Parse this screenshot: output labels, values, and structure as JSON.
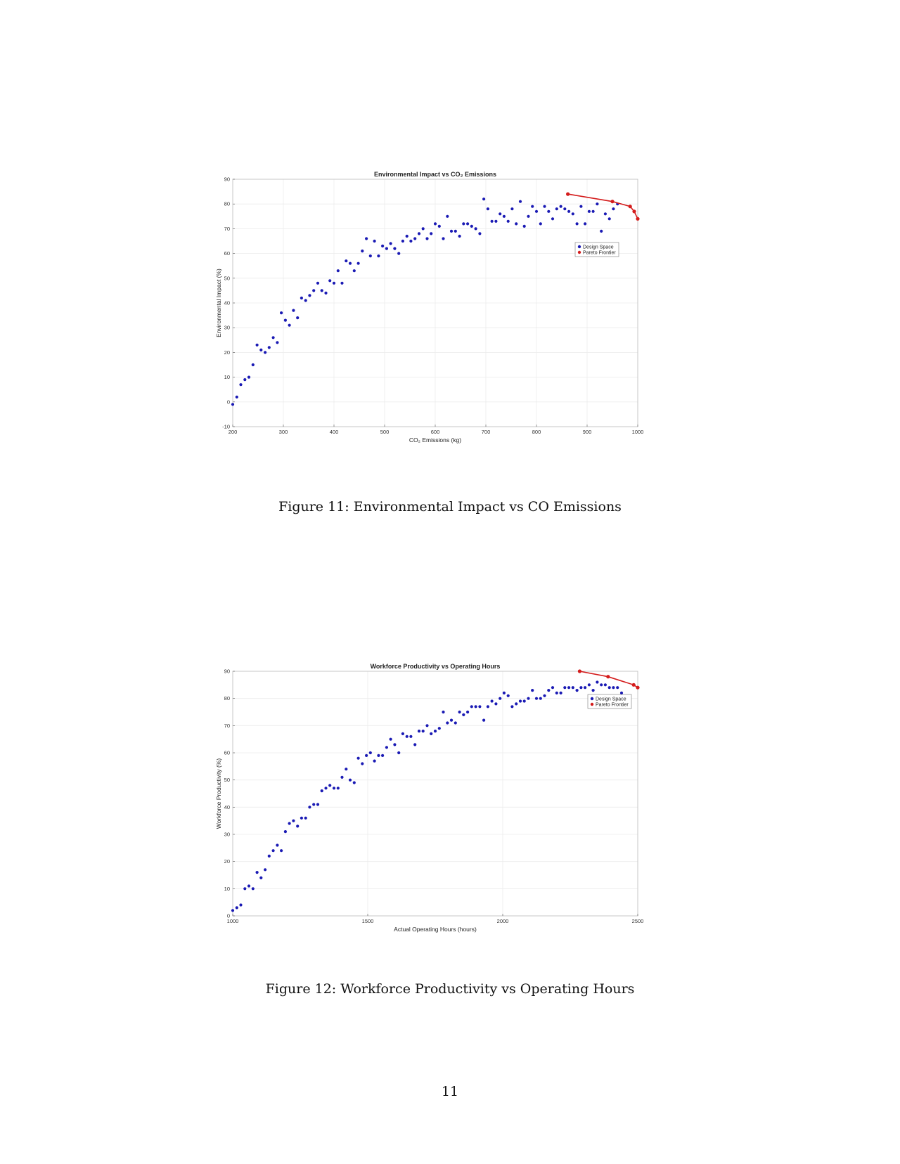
{
  "figures": [
    {
      "caption": "Figure 11: Environmental Impact vs CO Emissions",
      "chart_data": {
        "type": "scatter",
        "title": "Environmental Impact vs CO₂ Emissions",
        "xlabel": "CO₂ Emissions (kg)",
        "ylabel": "Environmental Impact (%)",
        "xlim": [
          200,
          1000
        ],
        "ylim": [
          -10,
          90
        ],
        "xticks": [
          200,
          300,
          400,
          500,
          600,
          700,
          800,
          900,
          1000
        ],
        "yticks": [
          -10,
          0,
          10,
          20,
          30,
          40,
          50,
          60,
          70,
          80,
          90
        ],
        "grid": true,
        "legend": "right, upper-middle",
        "series": [
          {
            "name": "Design Space",
            "color": "#1a1ab4",
            "marker": "point",
            "points": [
              [
                200,
                -1
              ],
              [
                208,
                2
              ],
              [
                216,
                7
              ],
              [
                224,
                9
              ],
              [
                232,
                10
              ],
              [
                240,
                15
              ],
              [
                248,
                23
              ],
              [
                256,
                21
              ],
              [
                264,
                20
              ],
              [
                272,
                22
              ],
              [
                280,
                26
              ],
              [
                288,
                24
              ],
              [
                296,
                36
              ],
              [
                304,
                33
              ],
              [
                312,
                31
              ],
              [
                320,
                37
              ],
              [
                328,
                34
              ],
              [
                336,
                42
              ],
              [
                344,
                41
              ],
              [
                352,
                43
              ],
              [
                360,
                45
              ],
              [
                368,
                48
              ],
              [
                376,
                45
              ],
              [
                384,
                44
              ],
              [
                392,
                49
              ],
              [
                400,
                48
              ],
              [
                408,
                53
              ],
              [
                416,
                48
              ],
              [
                424,
                57
              ],
              [
                432,
                56
              ],
              [
                440,
                53
              ],
              [
                448,
                56
              ],
              [
                456,
                61
              ],
              [
                464,
                66
              ],
              [
                472,
                59
              ],
              [
                480,
                65
              ],
              [
                488,
                59
              ],
              [
                496,
                63
              ],
              [
                504,
                62
              ],
              [
                512,
                64
              ],
              [
                520,
                62
              ],
              [
                528,
                60
              ],
              [
                536,
                65
              ],
              [
                544,
                67
              ],
              [
                552,
                65
              ],
              [
                560,
                66
              ],
              [
                568,
                68
              ],
              [
                576,
                70
              ],
              [
                584,
                66
              ],
              [
                592,
                68
              ],
              [
                600,
                72
              ],
              [
                608,
                71
              ],
              [
                616,
                66
              ],
              [
                624,
                75
              ],
              [
                632,
                69
              ],
              [
                640,
                69
              ],
              [
                648,
                67
              ],
              [
                656,
                72
              ],
              [
                664,
                72
              ],
              [
                672,
                71
              ],
              [
                680,
                70
              ],
              [
                688,
                68
              ],
              [
                696,
                82
              ],
              [
                704,
                78
              ],
              [
                712,
                73
              ],
              [
                720,
                73
              ],
              [
                728,
                76
              ],
              [
                736,
                75
              ],
              [
                744,
                73
              ],
              [
                752,
                78
              ],
              [
                760,
                72
              ],
              [
                768,
                81
              ],
              [
                776,
                71
              ],
              [
                784,
                75
              ],
              [
                792,
                79
              ],
              [
                800,
                77
              ],
              [
                808,
                72
              ],
              [
                816,
                79
              ],
              [
                824,
                77
              ],
              [
                832,
                74
              ],
              [
                840,
                78
              ],
              [
                848,
                79
              ],
              [
                856,
                78
              ],
              [
                864,
                77
              ],
              [
                872,
                76
              ],
              [
                880,
                72
              ],
              [
                888,
                79
              ],
              [
                896,
                72
              ],
              [
                904,
                77
              ],
              [
                912,
                77
              ],
              [
                920,
                80
              ],
              [
                928,
                69
              ],
              [
                936,
                76
              ],
              [
                944,
                74
              ],
              [
                952,
                78
              ],
              [
                960,
                80
              ]
            ]
          },
          {
            "name": "Pareto Frontier",
            "color": "#d41c1c",
            "marker": "point-line",
            "points": [
              [
                862,
                84
              ],
              [
                950,
                81
              ],
              [
                985,
                79
              ],
              [
                993,
                77
              ],
              [
                1000,
                74
              ]
            ]
          }
        ]
      }
    },
    {
      "caption": "Figure 12: Workforce Productivity vs Operating Hours",
      "chart_data": {
        "type": "scatter",
        "title": "Workforce Productivity vs Operating Hours",
        "xlabel": "Actual Operating Hours (hours)",
        "ylabel": "Workforce Productivity (%)",
        "xlim": [
          1000,
          2500
        ],
        "ylim": [
          0,
          90
        ],
        "xticks": [
          1000,
          1500,
          2000,
          2500
        ],
        "yticks": [
          0,
          10,
          20,
          30,
          40,
          50,
          60,
          70,
          80,
          90
        ],
        "grid": true,
        "legend": "right, upper-middle",
        "series": [
          {
            "name": "Design Space",
            "color": "#1a1ab4",
            "marker": "point",
            "points": [
              [
                1000,
                2
              ],
              [
                1015,
                3
              ],
              [
                1030,
                4
              ],
              [
                1045,
                10
              ],
              [
                1060,
                11
              ],
              [
                1075,
                10
              ],
              [
                1090,
                16
              ],
              [
                1105,
                14
              ],
              [
                1120,
                17
              ],
              [
                1135,
                22
              ],
              [
                1150,
                24
              ],
              [
                1165,
                26
              ],
              [
                1180,
                24
              ],
              [
                1195,
                31
              ],
              [
                1210,
                34
              ],
              [
                1225,
                35
              ],
              [
                1240,
                33
              ],
              [
                1255,
                36
              ],
              [
                1270,
                36
              ],
              [
                1285,
                40
              ],
              [
                1300,
                41
              ],
              [
                1315,
                41
              ],
              [
                1330,
                46
              ],
              [
                1345,
                47
              ],
              [
                1360,
                48
              ],
              [
                1375,
                47
              ],
              [
                1390,
                47
              ],
              [
                1405,
                51
              ],
              [
                1420,
                54
              ],
              [
                1435,
                50
              ],
              [
                1450,
                49
              ],
              [
                1465,
                58
              ],
              [
                1480,
                56
              ],
              [
                1495,
                59
              ],
              [
                1510,
                60
              ],
              [
                1525,
                57
              ],
              [
                1540,
                59
              ],
              [
                1555,
                59
              ],
              [
                1570,
                62
              ],
              [
                1585,
                65
              ],
              [
                1600,
                63
              ],
              [
                1615,
                60
              ],
              [
                1630,
                67
              ],
              [
                1645,
                66
              ],
              [
                1660,
                66
              ],
              [
                1675,
                63
              ],
              [
                1690,
                68
              ],
              [
                1705,
                68
              ],
              [
                1720,
                70
              ],
              [
                1735,
                67
              ],
              [
                1750,
                68
              ],
              [
                1765,
                69
              ],
              [
                1780,
                75
              ],
              [
                1795,
                71
              ],
              [
                1810,
                72
              ],
              [
                1825,
                71
              ],
              [
                1840,
                75
              ],
              [
                1855,
                74
              ],
              [
                1870,
                75
              ],
              [
                1885,
                77
              ],
              [
                1900,
                77
              ],
              [
                1915,
                77
              ],
              [
                1930,
                72
              ],
              [
                1945,
                77
              ],
              [
                1960,
                79
              ],
              [
                1975,
                78
              ],
              [
                1990,
                80
              ],
              [
                2005,
                82
              ],
              [
                2020,
                81
              ],
              [
                2035,
                77
              ],
              [
                2050,
                78
              ],
              [
                2065,
                79
              ],
              [
                2080,
                79
              ],
              [
                2095,
                80
              ],
              [
                2110,
                83
              ],
              [
                2125,
                80
              ],
              [
                2140,
                80
              ],
              [
                2155,
                81
              ],
              [
                2170,
                83
              ],
              [
                2185,
                84
              ],
              [
                2200,
                82
              ],
              [
                2215,
                82
              ],
              [
                2230,
                84
              ],
              [
                2245,
                84
              ],
              [
                2260,
                84
              ],
              [
                2275,
                83
              ],
              [
                2290,
                84
              ],
              [
                2305,
                84
              ],
              [
                2320,
                85
              ],
              [
                2335,
                83
              ],
              [
                2350,
                86
              ],
              [
                2365,
                85
              ],
              [
                2380,
                85
              ],
              [
                2395,
                84
              ],
              [
                2410,
                84
              ],
              [
                2425,
                84
              ],
              [
                2440,
                82
              ]
            ]
          },
          {
            "name": "Pareto Frontier",
            "color": "#d41c1c",
            "marker": "point-line",
            "points": [
              [
                2285,
                90
              ],
              [
                2390,
                88
              ],
              [
                2485,
                85
              ],
              [
                2500,
                84
              ]
            ]
          }
        ]
      }
    }
  ],
  "page_number": "11"
}
